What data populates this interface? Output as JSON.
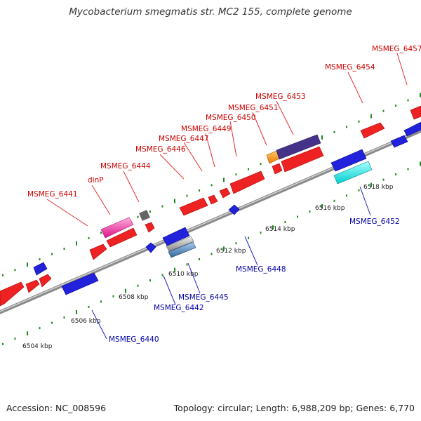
{
  "title": "Mycobacterium smegmatis str. MC2 155, complete genome",
  "footer": {
    "accession": "Accession: NC_008596",
    "summary": "Topology: circular; Length: 6,988,209 bp; Genes: 6,770"
  },
  "colors": {
    "forward_label": "#cc0000",
    "reverse_label": "#0000aa",
    "leader_forward": "#e03030",
    "leader_reverse": "#2020c0",
    "tick": "#1e8c1e",
    "backbone": "#a0a0a0"
  },
  "ticks": [
    {
      "label": "6504 kbp"
    },
    {
      "label": "6506 kbp"
    },
    {
      "label": "6508 kbp"
    },
    {
      "label": "6510 kbp"
    },
    {
      "label": "6512 kbp"
    },
    {
      "label": "6514 kbp"
    },
    {
      "label": "6516 kbp"
    },
    {
      "label": "6518 kbp"
    }
  ],
  "genes": [
    {
      "name": "MSMEG_6440",
      "strand": "reverse",
      "color": "#2222dd"
    },
    {
      "name": "MSMEG_6441",
      "strand": "forward",
      "color": "#ee2222"
    },
    {
      "name": "dinP",
      "strand": "forward",
      "color": "#ee2299"
    },
    {
      "name": "MSMEG_6442",
      "strand": "reverse",
      "color": "#2222dd"
    },
    {
      "name": "MSMEG_6444",
      "strand": "forward",
      "color": "#666666"
    },
    {
      "name": "MSMEG_6445",
      "strand": "reverse",
      "color": "#4477bb"
    },
    {
      "name": "MSMEG_6446",
      "strand": "forward",
      "color": "#ee2222"
    },
    {
      "name": "MSMEG_6447",
      "strand": "forward",
      "color": "#ee2222"
    },
    {
      "name": "MSMEG_6448",
      "strand": "reverse",
      "color": "#2222dd"
    },
    {
      "name": "MSMEG_6449",
      "strand": "forward",
      "color": "#ee2222"
    },
    {
      "name": "MSMEG_6450",
      "strand": "forward",
      "color": "#ee2222"
    },
    {
      "name": "MSMEG_6451",
      "strand": "forward",
      "color": "#ee8800"
    },
    {
      "name": "MSMEG_6452",
      "strand": "reverse",
      "color": "#00dddd"
    },
    {
      "name": "MSMEG_6453",
      "strand": "forward",
      "color": "#443388"
    },
    {
      "name": "MSMEG_6454",
      "strand": "forward",
      "color": "#ee2222"
    },
    {
      "name": "MSMEG_6457",
      "strand": "forward",
      "color": "#ee2222"
    }
  ]
}
